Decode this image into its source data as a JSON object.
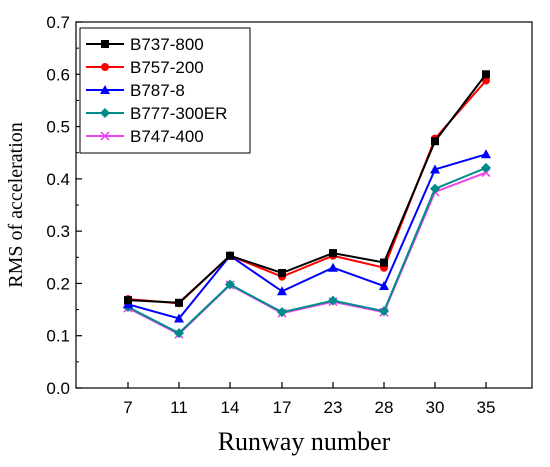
{
  "chart_data": {
    "type": "line",
    "title": "",
    "xlabel": "Runway number",
    "ylabel": "RMS of acceleration",
    "categories": [
      "7",
      "11",
      "14",
      "17",
      "23",
      "28",
      "30",
      "35"
    ],
    "ylim": [
      0.0,
      0.7
    ],
    "yticks": [
      "0.0",
      "0.1",
      "0.2",
      "0.3",
      "0.4",
      "0.5",
      "0.6",
      "0.7"
    ],
    "grid": false,
    "legend_position": "top-left",
    "series": [
      {
        "name": "B737-800",
        "color": "#000000",
        "marker": "square",
        "values": [
          0.168,
          0.163,
          0.253,
          0.22,
          0.258,
          0.24,
          0.472,
          0.6
        ]
      },
      {
        "name": "B757-200",
        "color": "#ff0000",
        "marker": "circle",
        "values": [
          0.17,
          0.162,
          0.253,
          0.213,
          0.253,
          0.23,
          0.477,
          0.588
        ]
      },
      {
        "name": "B787-8",
        "color": "#0000ff",
        "marker": "triangle",
        "values": [
          0.16,
          0.133,
          0.253,
          0.185,
          0.23,
          0.195,
          0.418,
          0.447
        ]
      },
      {
        "name": "B777-300ER",
        "color": "#008b8b",
        "marker": "diamond",
        "values": [
          0.155,
          0.105,
          0.198,
          0.145,
          0.167,
          0.147,
          0.381,
          0.421
        ]
      },
      {
        "name": "B747-400",
        "color": "#ee44ee",
        "marker": "cross",
        "values": [
          0.153,
          0.103,
          0.197,
          0.143,
          0.165,
          0.145,
          0.375,
          0.412
        ]
      }
    ]
  }
}
